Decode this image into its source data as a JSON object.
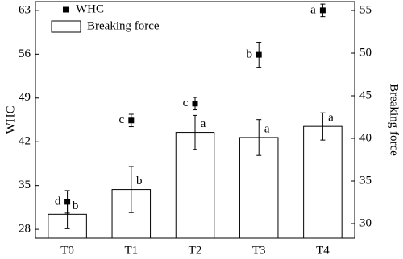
{
  "chart_data": {
    "type": "bar",
    "categories": [
      "T0",
      "T1",
      "T2",
      "T3",
      "T4"
    ],
    "ylabel": "WHC",
    "y2label": "Breaking force",
    "ylim": [
      26.6,
      64.4
    ],
    "yticks": [
      28,
      35,
      42,
      49,
      56,
      63
    ],
    "y2lim": [
      28.3,
      56.04
    ],
    "y2ticks": [
      30,
      35,
      40,
      45,
      50,
      55
    ],
    "series": [
      {
        "name": "WHC",
        "type": "scatter",
        "axis": "y",
        "color": "#000000",
        "values": [
          32.4,
          45.4,
          48.1,
          55.9,
          63.0
        ],
        "errors": [
          1.8,
          1.0,
          1.0,
          2.0,
          1.0
        ],
        "letters": [
          "d",
          "c",
          "c",
          "b",
          "a"
        ]
      },
      {
        "name": "Breaking force",
        "type": "bar",
        "axis": "y2",
        "color": "#ffffff",
        "values": [
          31.1,
          34.0,
          40.7,
          40.1,
          41.4
        ],
        "errors": [
          1.7,
          2.7,
          2.0,
          2.1,
          1.6
        ],
        "letters": [
          "b",
          "b",
          "a",
          "a",
          "a"
        ]
      }
    ]
  }
}
